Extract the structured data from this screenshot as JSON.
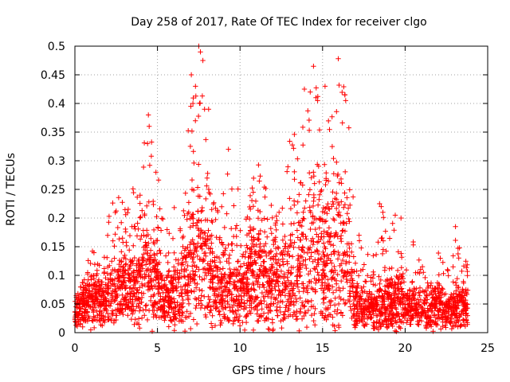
{
  "chart_data": {
    "type": "scatter",
    "title": "Day 258 of 2017, Rate Of TEC Index for receiver clgo",
    "xlabel": "GPS time / hours",
    "ylabel": "ROTI / TECUs",
    "xlim": [
      0,
      25
    ],
    "ylim": [
      0,
      0.5
    ],
    "xticks": [
      0,
      5,
      10,
      15,
      20,
      25
    ],
    "yticks": [
      0,
      0.05,
      0.1,
      0.15,
      0.2,
      0.25,
      0.3,
      0.35,
      0.4,
      0.45,
      0.5
    ],
    "xtick_labels": [
      "0",
      "5",
      "10",
      "15",
      "20",
      "25"
    ],
    "ytick_labels": [
      "0",
      "0.05",
      "0.1",
      "0.15",
      "0.2",
      "0.25",
      "0.3",
      "0.35",
      "0.4",
      "0.45",
      "0.5"
    ],
    "grid": true,
    "marker": "+",
    "colors": {
      "series": "#ff0000",
      "grid": "#a0a0a0",
      "axis": "#000000"
    },
    "envelope": {
      "x": [
        0,
        0.5,
        1,
        1.5,
        2,
        2.5,
        3,
        3.5,
        4,
        4.5,
        5,
        5.5,
        6,
        6.5,
        7,
        7.5,
        8,
        8.5,
        9,
        9.5,
        10,
        10.5,
        11,
        11.5,
        12,
        12.5,
        13,
        13.5,
        14,
        14.5,
        15,
        15.5,
        16,
        16.5,
        17,
        17.5,
        18,
        18.5,
        19,
        19.5,
        20,
        20.5,
        21,
        21.5,
        22,
        22.5,
        23,
        23.5,
        23.8
      ],
      "upper": [
        0.07,
        0.09,
        0.15,
        0.12,
        0.2,
        0.25,
        0.22,
        0.26,
        0.33,
        0.38,
        0.3,
        0.18,
        0.22,
        0.25,
        0.4,
        0.5,
        0.33,
        0.22,
        0.3,
        0.26,
        0.25,
        0.28,
        0.33,
        0.28,
        0.22,
        0.25,
        0.34,
        0.36,
        0.42,
        0.47,
        0.37,
        0.38,
        0.48,
        0.4,
        0.2,
        0.14,
        0.14,
        0.23,
        0.19,
        0.2,
        0.14,
        0.16,
        0.12,
        0.11,
        0.14,
        0.12,
        0.18,
        0.14,
        0.13
      ],
      "lower": [
        0.01,
        0.02,
        0.02,
        0.02,
        0.02,
        0.03,
        0.03,
        0.03,
        0.03,
        0.03,
        0.02,
        0.02,
        0.02,
        0.02,
        0.03,
        0.05,
        0.04,
        0.03,
        0.02,
        0.02,
        0.02,
        0.03,
        0.02,
        0.02,
        0.02,
        0.02,
        0.03,
        0.02,
        0.02,
        0.02,
        0.02,
        0.02,
        0.03,
        0.03,
        0.01,
        0.01,
        0.01,
        0.01,
        0.01,
        0.01,
        0.02,
        0.02,
        0.01,
        0.01,
        0.01,
        0.01,
        0.01,
        0.01,
        0.01
      ],
      "typical": [
        0.04,
        0.05,
        0.06,
        0.06,
        0.07,
        0.07,
        0.08,
        0.08,
        0.1,
        0.12,
        0.08,
        0.06,
        0.07,
        0.08,
        0.12,
        0.14,
        0.12,
        0.08,
        0.09,
        0.07,
        0.08,
        0.1,
        0.11,
        0.1,
        0.08,
        0.09,
        0.1,
        0.11,
        0.13,
        0.15,
        0.13,
        0.14,
        0.16,
        0.13,
        0.05,
        0.04,
        0.04,
        0.05,
        0.05,
        0.06,
        0.05,
        0.05,
        0.04,
        0.04,
        0.05,
        0.04,
        0.05,
        0.05,
        0.04
      ]
    },
    "outliers": [
      {
        "x": 4.45,
        "y": 0.38
      },
      {
        "x": 4.5,
        "y": 0.36
      },
      {
        "x": 4.4,
        "y": 0.33
      },
      {
        "x": 7.05,
        "y": 0.45
      },
      {
        "x": 7.15,
        "y": 0.4
      },
      {
        "x": 7.3,
        "y": 0.43
      },
      {
        "x": 7.5,
        "y": 0.5
      },
      {
        "x": 7.6,
        "y": 0.49
      },
      {
        "x": 7.75,
        "y": 0.475
      },
      {
        "x": 7.85,
        "y": 0.39
      },
      {
        "x": 8.1,
        "y": 0.39
      },
      {
        "x": 9.3,
        "y": 0.32
      },
      {
        "x": 13.9,
        "y": 0.425
      },
      {
        "x": 14.25,
        "y": 0.42
      },
      {
        "x": 14.45,
        "y": 0.465
      },
      {
        "x": 14.6,
        "y": 0.41
      },
      {
        "x": 14.7,
        "y": 0.405
      },
      {
        "x": 15.15,
        "y": 0.43
      },
      {
        "x": 15.95,
        "y": 0.478
      },
      {
        "x": 16.0,
        "y": 0.432
      },
      {
        "x": 16.35,
        "y": 0.415
      },
      {
        "x": 16.4,
        "y": 0.405
      },
      {
        "x": 18.45,
        "y": 0.225
      },
      {
        "x": 18.55,
        "y": 0.22
      },
      {
        "x": 19.4,
        "y": 0.205
      },
      {
        "x": 19.75,
        "y": 0.2
      },
      {
        "x": 23.05,
        "y": 0.185
      }
    ]
  }
}
